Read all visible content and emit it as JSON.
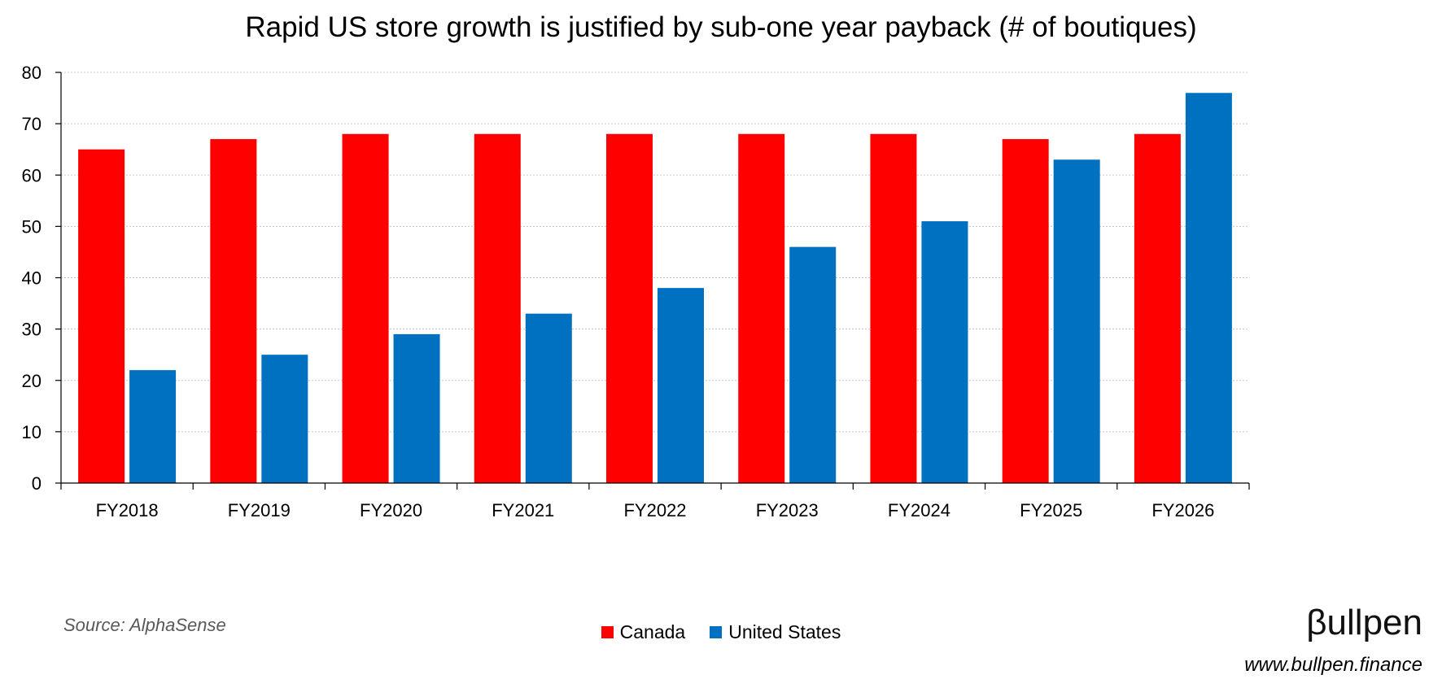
{
  "chart_data": {
    "type": "bar",
    "title": "Rapid US store growth is justified by sub-one year payback (# of boutiques)",
    "xlabel": "",
    "ylabel": "",
    "categories": [
      "FY2018",
      "FY2019",
      "FY2020",
      "FY2021",
      "FY2022",
      "FY2023",
      "FY2024",
      "FY2025",
      "FY2026"
    ],
    "series": [
      {
        "name": "Canada",
        "color": "#FF0000",
        "values": [
          65,
          67,
          68,
          68,
          68,
          68,
          68,
          67,
          68
        ]
      },
      {
        "name": "United States",
        "color": "#0070C0",
        "values": [
          22,
          25,
          29,
          33,
          38,
          46,
          51,
          63,
          76
        ]
      }
    ],
    "ylim": [
      0,
      80
    ],
    "yticks": [
      0,
      10,
      20,
      30,
      40,
      50,
      60,
      70,
      80
    ],
    "grid": true,
    "legend": "bottom-center"
  },
  "footer": {
    "source": "Source: AlphaSense",
    "brand": "βullpen",
    "url": "www.bullpen.finance"
  }
}
